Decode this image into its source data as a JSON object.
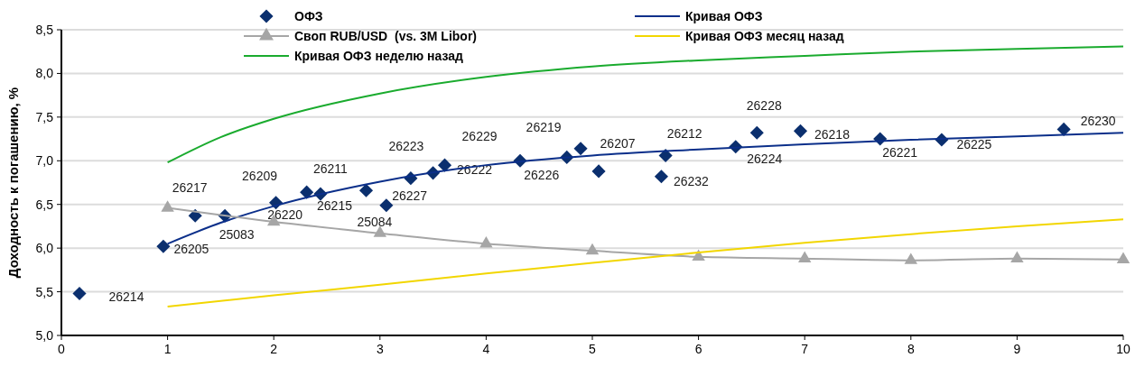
{
  "chart_data": {
    "type": "line",
    "ylabel": "Доходность к погашению, %",
    "xlim": [
      0,
      10
    ],
    "xticks": [
      0,
      1,
      2,
      3,
      4,
      5,
      6,
      7,
      8,
      9,
      10
    ],
    "ylim": [
      5.0,
      8.5
    ],
    "yticks": [
      {
        "value": 5.0,
        "label": "5,0"
      },
      {
        "value": 5.5,
        "label": "5,5"
      },
      {
        "value": 6.0,
        "label": "6,0"
      },
      {
        "value": 6.5,
        "label": "6,5"
      },
      {
        "value": 7.0,
        "label": "7,0"
      },
      {
        "value": 7.5,
        "label": "7,5"
      },
      {
        "value": 8.0,
        "label": "8,0"
      },
      {
        "value": 8.5,
        "label": "8,5"
      }
    ],
    "grid": "y",
    "legend": "top",
    "series": [
      {
        "name": "ОФЗ",
        "type": "scatter",
        "marker": "diamond",
        "color": "#0b2f6e",
        "x": [
          0.17,
          0.96,
          1.26,
          1.54,
          2.02,
          2.31,
          2.44,
          2.87,
          3.06,
          3.29,
          3.5,
          3.61,
          4.32,
          4.76,
          4.89,
          5.06,
          5.65,
          5.69,
          6.35,
          6.55,
          6.96,
          7.71,
          8.29,
          9.44
        ],
        "values": [
          5.48,
          6.02,
          6.37,
          6.37,
          6.52,
          6.64,
          6.62,
          6.66,
          6.49,
          6.8,
          6.86,
          6.95,
          7.0,
          7.04,
          7.14,
          6.88,
          6.82,
          7.06,
          7.16,
          7.32,
          7.34,
          7.25,
          7.24,
          7.36
        ]
      },
      {
        "name": "Кривая ОФЗ",
        "marker": "none",
        "color": "#0b2f8a",
        "x": [
          1,
          1.5,
          2,
          3,
          4,
          5,
          6,
          7,
          8,
          9,
          10
        ],
        "values": [
          6.05,
          6.29,
          6.48,
          6.76,
          6.95,
          7.06,
          7.13,
          7.19,
          7.24,
          7.28,
          7.32
        ]
      },
      {
        "name": "Своп RUB/USD  (vs. 3M Libor)",
        "marker": "triangle",
        "color": "#a6a6a6",
        "x": [
          1,
          2,
          3,
          4,
          5,
          6,
          7,
          8,
          9,
          10
        ],
        "values": [
          6.46,
          6.3,
          6.17,
          6.05,
          5.97,
          5.9,
          5.88,
          5.86,
          5.88,
          5.87
        ]
      },
      {
        "name": "Кривая ОФЗ месяц назад",
        "marker": "none",
        "color": "#f2d600",
        "x": [
          1,
          2,
          3,
          4,
          5,
          6,
          7,
          8,
          9,
          10
        ],
        "values": [
          5.33,
          5.46,
          5.58,
          5.71,
          5.83,
          5.95,
          6.06,
          6.16,
          6.25,
          6.33
        ]
      },
      {
        "name": "Кривая ОФЗ неделю назад",
        "marker": "none",
        "color": "#1aab2e",
        "x": [
          1,
          1.5,
          2,
          3,
          4,
          5,
          6,
          7,
          8,
          9,
          10
        ],
        "values": [
          6.98,
          7.27,
          7.48,
          7.77,
          7.96,
          8.08,
          8.15,
          8.2,
          8.25,
          8.28,
          8.31
        ]
      }
    ],
    "annotations": [
      {
        "text": "26214",
        "x": 0.17,
        "y": 5.48
      },
      {
        "text": "26205",
        "x": 0.96,
        "y": 6.02
      },
      {
        "text": "26217",
        "x": 1.26,
        "y": 6.37
      },
      {
        "text": "25083",
        "x": 1.54,
        "y": 6.37
      },
      {
        "text": "26209",
        "x": 2.02,
        "y": 6.52
      },
      {
        "text": "26220",
        "x": 2.31,
        "y": 6.64
      },
      {
        "text": "26211",
        "x": 2.44,
        "y": 6.62
      },
      {
        "text": "26215",
        "x": 2.87,
        "y": 6.66
      },
      {
        "text": "25084",
        "x": 3.06,
        "y": 6.49
      },
      {
        "text": "26223",
        "x": 3.29,
        "y": 6.8
      },
      {
        "text": "26227",
        "x": 3.5,
        "y": 6.86
      },
      {
        "text": "26222",
        "x": 3.61,
        "y": 6.95
      },
      {
        "text": "26229",
        "x": 4.32,
        "y": 7.0
      },
      {
        "text": "26226",
        "x": 4.76,
        "y": 7.04
      },
      {
        "text": "26219",
        "x": 4.89,
        "y": 7.14
      },
      {
        "text": "26207",
        "x": 5.06,
        "y": 6.88
      },
      {
        "text": "26232",
        "x": 5.65,
        "y": 6.82
      },
      {
        "text": "26212",
        "x": 5.69,
        "y": 7.06
      },
      {
        "text": "26224",
        "x": 6.35,
        "y": 7.16
      },
      {
        "text": "26228",
        "x": 6.55,
        "y": 7.32
      },
      {
        "text": "26218",
        "x": 6.96,
        "y": 7.34
      },
      {
        "text": "26221",
        "x": 7.71,
        "y": 7.25
      },
      {
        "text": "26225",
        "x": 8.29,
        "y": 7.24
      },
      {
        "text": "26230",
        "x": 9.44,
        "y": 7.36
      }
    ]
  }
}
